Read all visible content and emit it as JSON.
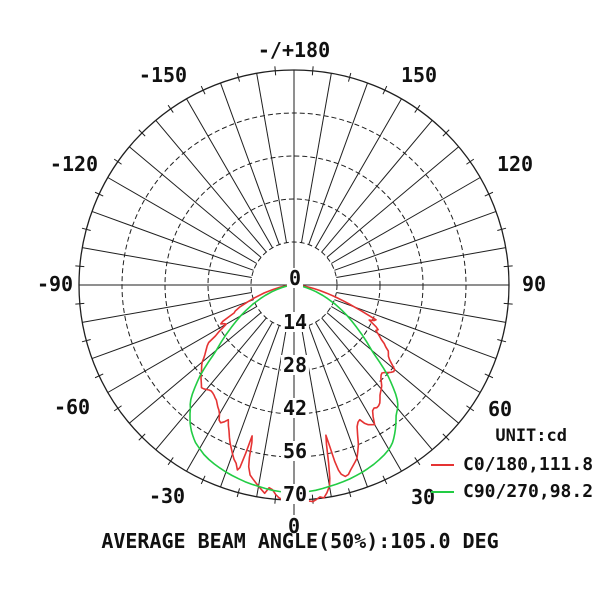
{
  "labels": {
    "angle": [
      "-/+180",
      "-150",
      "150",
      "-120",
      "120",
      "-90",
      "90",
      "-60",
      "60",
      "-30",
      "30",
      "0"
    ],
    "ring": [
      "0",
      "14",
      "28",
      "42",
      "56",
      "70"
    ]
  },
  "legend": {
    "unit": "UNIT:cd",
    "entries": [
      {
        "label": "C0/180,111.8",
        "color": "#e53333"
      },
      {
        "label": "C90/270,98.2",
        "color": "#22cc44"
      }
    ]
  },
  "caption": "AVERAGE BEAM ANGLE(50%):105.0 DEG",
  "chart_data": {
    "type": "line",
    "projection": "polar",
    "title": "Luminous intensity distribution",
    "unit": "cd",
    "angle_tick_labels_deg": [
      -180,
      -150,
      -120,
      -90,
      -60,
      -30,
      0,
      30,
      60,
      90,
      120,
      150,
      180
    ],
    "spoke_step_deg": 10,
    "minor_tick_step_deg": 5,
    "radial_tick_labels_cd": [
      0,
      14,
      28,
      42,
      56,
      70
    ],
    "radial_max_cd": 70,
    "grid_color": "#1f1f1f",
    "average_beam_angle_50pct_deg": 105.0,
    "series": [
      {
        "name": "C0/180,111.8",
        "plane": "C0/180",
        "beam_angle_deg": 111.8,
        "color": "#e53333",
        "points": [
          [
            -90,
            0.4
          ],
          [
            -87,
            1.2
          ],
          [
            -84,
            2.5
          ],
          [
            -81,
            4.5
          ],
          [
            -78,
            7
          ],
          [
            -75,
            10
          ],
          [
            -72,
            13.5
          ],
          [
            -70,
            16
          ],
          [
            -68,
            19
          ],
          [
            -66,
            21
          ],
          [
            -65,
            21.5
          ],
          [
            -64,
            23.5
          ],
          [
            -63,
            26
          ],
          [
            -62,
            27
          ],
          [
            -61,
            26
          ],
          [
            -60,
            25.5
          ],
          [
            -59,
            27
          ],
          [
            -58,
            29
          ],
          [
            -57,
            30.5
          ],
          [
            -56,
            33.5
          ],
          [
            -55,
            34.5
          ],
          [
            -54,
            35.2
          ],
          [
            -53,
            36
          ],
          [
            -52,
            36.8
          ],
          [
            -51,
            37.8
          ],
          [
            -50,
            39
          ],
          [
            -49,
            39.8
          ],
          [
            -48,
            40.5
          ],
          [
            -47,
            41.2
          ],
          [
            -46,
            42
          ],
          [
            -45,
            42.8
          ],
          [
            -44,
            43.5
          ],
          [
            -43,
            44.2
          ],
          [
            -42,
            45
          ],
          [
            -41,
            44.8
          ],
          [
            -40,
            44.4
          ],
          [
            -39,
            44
          ],
          [
            -38,
            43.8
          ],
          [
            -37,
            44
          ],
          [
            -36,
            44.3
          ],
          [
            -35,
            44.8
          ],
          [
            -34,
            45.2
          ],
          [
            -33,
            46
          ],
          [
            -32,
            46.8
          ],
          [
            -31,
            47.5
          ],
          [
            -30,
            48.5
          ],
          [
            -29,
            50.3
          ],
          [
            -28,
            50.8
          ],
          [
            -27,
            50
          ],
          [
            -26,
            48.8
          ],
          [
            -25,
            50.5
          ],
          [
            -24,
            52
          ],
          [
            -23,
            53.8
          ],
          [
            -22,
            55.5
          ],
          [
            -21,
            57
          ],
          [
            -20,
            58.5
          ],
          [
            -19,
            60
          ],
          [
            -18,
            61
          ],
          [
            -17,
            63
          ],
          [
            -16.5,
            62
          ],
          [
            -16,
            57
          ],
          [
            -15.5,
            51
          ],
          [
            -15,
            53
          ],
          [
            -14.5,
            58
          ],
          [
            -14,
            61
          ],
          [
            -13,
            63.5
          ],
          [
            -12,
            64.5
          ],
          [
            -11,
            65.5
          ],
          [
            -10,
            66.5
          ],
          [
            -9,
            67.5
          ],
          [
            -8,
            68.5
          ],
          [
            -7,
            66.5
          ],
          [
            -6,
            67
          ],
          [
            -5,
            68.5
          ],
          [
            -4,
            69.5
          ],
          [
            -3,
            70
          ],
          [
            -2,
            70.2
          ],
          [
            -1,
            70
          ],
          [
            0,
            69.8
          ],
          [
            1,
            70.3
          ],
          [
            2,
            70.8
          ],
          [
            3,
            71
          ],
          [
            4,
            70.5
          ],
          [
            5,
            70.8
          ],
          [
            6,
            70.2
          ],
          [
            7,
            69.5
          ],
          [
            8,
            70
          ],
          [
            9,
            68.5
          ],
          [
            10,
            66.5
          ],
          [
            10.5,
            64
          ],
          [
            11,
            59
          ],
          [
            11.5,
            53
          ],
          [
            12,
            50
          ],
          [
            12.5,
            54
          ],
          [
            13,
            59
          ],
          [
            13.5,
            62
          ],
          [
            14,
            63.5
          ],
          [
            15,
            64.5
          ],
          [
            16,
            64.2
          ],
          [
            17,
            63
          ],
          [
            18,
            62
          ],
          [
            19,
            61
          ],
          [
            20,
            60
          ],
          [
            21,
            58
          ],
          [
            22,
            56
          ],
          [
            23,
            53
          ],
          [
            24,
            50.5
          ],
          [
            25,
            49.3
          ],
          [
            26,
            48.8
          ],
          [
            27,
            50.5
          ],
          [
            28,
            51.5
          ],
          [
            29,
            52
          ],
          [
            30,
            52.5
          ],
          [
            31,
            50
          ],
          [
            32,
            48.3
          ],
          [
            33,
            47.8
          ],
          [
            34,
            48.2
          ],
          [
            35,
            48
          ],
          [
            36,
            47.5
          ],
          [
            37,
            46.5
          ],
          [
            38,
            45.5
          ],
          [
            39,
            44.8
          ],
          [
            40,
            44.2
          ],
          [
            41,
            43.5
          ],
          [
            42,
            42.5
          ],
          [
            43,
            41.5
          ],
          [
            44,
            40.8
          ],
          [
            45,
            40.5
          ],
          [
            46,
            41
          ],
          [
            47,
            41.8
          ],
          [
            48,
            42.5
          ],
          [
            49,
            43
          ],
          [
            50,
            42.8
          ],
          [
            51,
            41
          ],
          [
            52,
            39.5
          ],
          [
            53,
            38.5
          ],
          [
            54,
            38
          ],
          [
            55,
            37.5
          ],
          [
            56,
            36
          ],
          [
            57,
            35
          ],
          [
            58,
            33.5
          ],
          [
            59,
            32.5
          ],
          [
            60,
            31.5
          ],
          [
            61,
            30.5
          ],
          [
            62,
            31
          ],
          [
            63,
            30
          ],
          [
            64,
            28.5
          ],
          [
            65,
            27
          ],
          [
            66,
            28.5
          ],
          [
            67,
            29
          ],
          [
            68,
            26
          ],
          [
            69,
            23.5
          ],
          [
            70,
            21
          ],
          [
            71,
            19
          ],
          [
            72,
            17
          ],
          [
            74,
            14
          ],
          [
            76,
            11
          ],
          [
            78,
            8.5
          ],
          [
            80,
            6.5
          ],
          [
            82,
            4.8
          ],
          [
            84,
            3.2
          ],
          [
            86,
            2
          ],
          [
            88,
            1
          ],
          [
            90,
            0.4
          ]
        ]
      },
      {
        "name": "C90/270,98.2",
        "plane": "C90/270",
        "beam_angle_deg": 98.2,
        "color": "#22cc44",
        "points": [
          [
            -90,
            0.3
          ],
          [
            -86,
            0.9
          ],
          [
            -83,
            1.8
          ],
          [
            -80,
            3
          ],
          [
            -78,
            4.2
          ],
          [
            -75,
            6
          ],
          [
            -73,
            7.5
          ],
          [
            -70,
            10
          ],
          [
            -68,
            11.8
          ],
          [
            -65,
            14.8
          ],
          [
            -62,
            17.8
          ],
          [
            -60,
            20
          ],
          [
            -58,
            22.2
          ],
          [
            -56,
            24.6
          ],
          [
            -54,
            27.2
          ],
          [
            -52,
            30
          ],
          [
            -50,
            33
          ],
          [
            -49,
            35
          ],
          [
            -48,
            37.5
          ],
          [
            -47,
            40
          ],
          [
            -46,
            42.5
          ],
          [
            -45,
            44.5
          ],
          [
            -44,
            46.5
          ],
          [
            -43,
            48.5
          ],
          [
            -42,
            50.2
          ],
          [
            -41,
            51.5
          ],
          [
            -40,
            52.5
          ],
          [
            -39,
            53.8
          ],
          [
            -38,
            55
          ],
          [
            -37,
            56.2
          ],
          [
            -36,
            57.2
          ],
          [
            -35,
            58.2
          ],
          [
            -34,
            59
          ],
          [
            -33,
            59.8
          ],
          [
            -32,
            60.5
          ],
          [
            -31,
            61
          ],
          [
            -30,
            61.5
          ],
          [
            -28,
            62.5
          ],
          [
            -26,
            63.2
          ],
          [
            -24,
            63.8
          ],
          [
            -22,
            64.3
          ],
          [
            -20,
            64.8
          ],
          [
            -18,
            65.2
          ],
          [
            -16,
            65.6
          ],
          [
            -14,
            66
          ],
          [
            -12,
            66.3
          ],
          [
            -10,
            66.6
          ],
          [
            -8,
            66.9
          ],
          [
            -6,
            67.2
          ],
          [
            -4,
            67.4
          ],
          [
            -2,
            67.6
          ],
          [
            0,
            67.8
          ],
          [
            2,
            67.6
          ],
          [
            4,
            67.4
          ],
          [
            6,
            67.2
          ],
          [
            8,
            66.9
          ],
          [
            10,
            66.6
          ],
          [
            12,
            66.3
          ],
          [
            14,
            66
          ],
          [
            16,
            65.7
          ],
          [
            18,
            65.3
          ],
          [
            20,
            64.9
          ],
          [
            22,
            64.4
          ],
          [
            24,
            63.9
          ],
          [
            26,
            63.3
          ],
          [
            28,
            62.6
          ],
          [
            30,
            61.8
          ],
          [
            31,
            61.2
          ],
          [
            32,
            60.5
          ],
          [
            33,
            59.6
          ],
          [
            34,
            58.6
          ],
          [
            35,
            57.5
          ],
          [
            36,
            56.4
          ],
          [
            37,
            55.2
          ],
          [
            38,
            54
          ],
          [
            39,
            53.2
          ],
          [
            40,
            52.5
          ],
          [
            41,
            51.5
          ],
          [
            42,
            50.2
          ],
          [
            43,
            48.5
          ],
          [
            44,
            46.5
          ],
          [
            45,
            44.5
          ],
          [
            46,
            42.5
          ],
          [
            47,
            40
          ],
          [
            48,
            37.5
          ],
          [
            49,
            35
          ],
          [
            50,
            33
          ],
          [
            52,
            30
          ],
          [
            54,
            27.2
          ],
          [
            56,
            24.6
          ],
          [
            58,
            22.2
          ],
          [
            60,
            20
          ],
          [
            62,
            17.8
          ],
          [
            65,
            14.8
          ],
          [
            68,
            11.8
          ],
          [
            70,
            10
          ],
          [
            73,
            7.5
          ],
          [
            75,
            6
          ],
          [
            78,
            4.2
          ],
          [
            80,
            3
          ],
          [
            83,
            1.8
          ],
          [
            86,
            0.9
          ],
          [
            90,
            0.3
          ]
        ]
      }
    ]
  }
}
